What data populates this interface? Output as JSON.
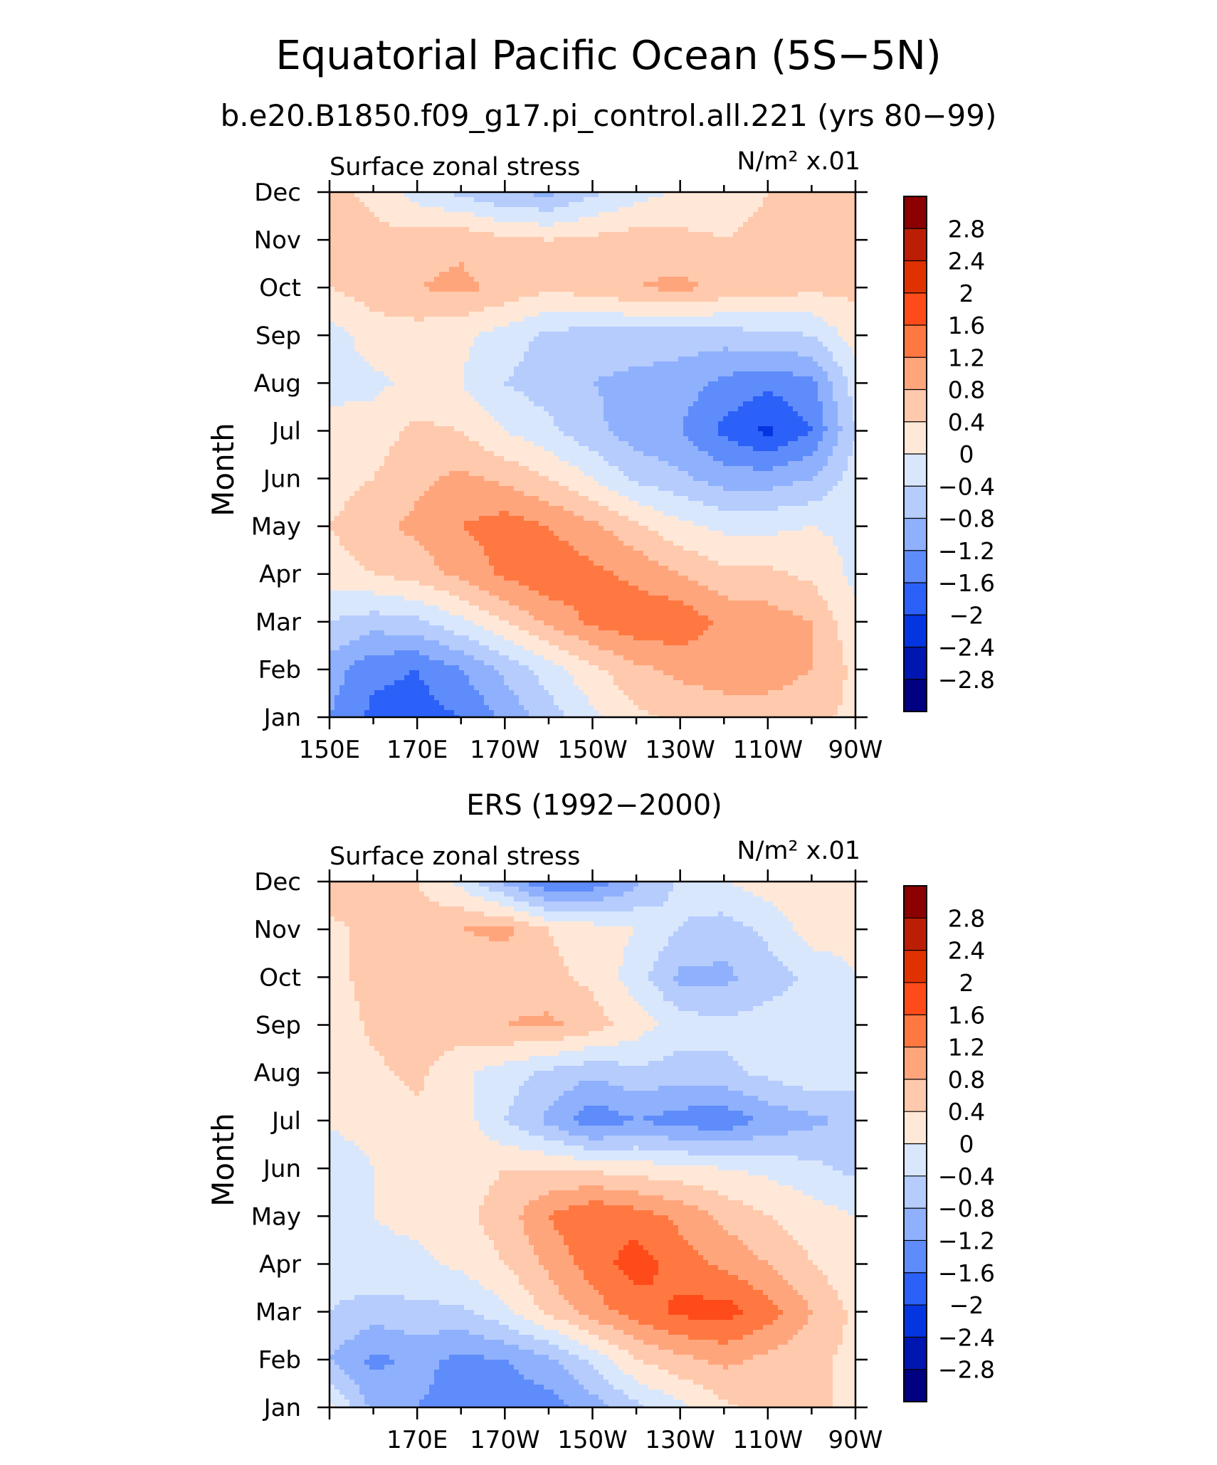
{
  "figure": {
    "title": "Equatorial Pacific Ocean (5S−5N)",
    "subtitle": "b.e20.B1850.f09_g17.pi_control.all.221 (yrs 80−99)"
  },
  "colorbar": {
    "labels": [
      "2.8",
      "2.4",
      "2",
      "1.6",
      "1.2",
      "0.8",
      "0.4",
      "0",
      "−0.4",
      "−0.8",
      "−1.2",
      "−1.6",
      "−2",
      "−2.4",
      "−2.8"
    ],
    "levels": [
      2.8,
      2.4,
      2.0,
      1.6,
      1.2,
      0.8,
      0.4,
      0,
      -0.4,
      -0.8,
      -1.2,
      -1.6,
      -2.0,
      -2.4,
      -2.8
    ],
    "colors_top_to_bottom": [
      "#8b0000",
      "#bb1e04",
      "#e03200",
      "#ff4b1a",
      "#ff7842",
      "#ffa57c",
      "#ffc9ad",
      "#ffe8d7",
      "#d9e7fd",
      "#b5ccfd",
      "#8fb0fc",
      "#5f8cfb",
      "#2b61f8",
      "#0535e0",
      "#0016b0",
      "#000080"
    ]
  },
  "panels": [
    {
      "id": "model",
      "var_label": "Surface zonal stress",
      "units_label": "N/m² x.01",
      "ylabel": "Month",
      "panel_title": ""
    },
    {
      "id": "ers",
      "var_label": "Surface zonal stress",
      "units_label": "N/m² x.01",
      "ylabel": "Month",
      "panel_title": "ERS (1992−2000)"
    }
  ],
  "chart_data": [
    {
      "type": "heatmap",
      "title": "Equatorial Pacific Ocean (5S−5N)",
      "subtitle": "b.e20.B1850.f09_g17.pi_control.all.221 (yrs 80−99)",
      "xlabel": "",
      "ylabel": "Month",
      "var": "Surface zonal stress",
      "units": "N/m² x.01",
      "x": [
        150,
        160,
        170,
        180,
        190,
        200,
        210,
        220,
        230,
        240,
        250,
        260,
        270
      ],
      "x_ticks": [
        "150E",
        "170E",
        "170W",
        "150W",
        "130W",
        "110W",
        "90W"
      ],
      "y": [
        "Jan",
        "Feb",
        "Mar",
        "Apr",
        "May",
        "Jun",
        "Jul",
        "Aug",
        "Sep",
        "Oct",
        "Nov",
        "Dec"
      ],
      "y_ticks": [
        "Jan",
        "Feb",
        "Mar",
        "Apr",
        "May",
        "Jun",
        "Jul",
        "Aug",
        "Sep",
        "Oct",
        "Nov",
        "Dec"
      ],
      "z": [
        [
          -1.2,
          -1.7,
          -1.8,
          -1.6,
          -1.1,
          -0.6,
          -0.1,
          0.3,
          0.5,
          0.6,
          0.6,
          0.5,
          0.3
        ],
        [
          -1.0,
          -1.5,
          -1.6,
          -1.2,
          -0.7,
          -0.2,
          0.3,
          0.7,
          0.9,
          1.0,
          1.0,
          0.8,
          0.3
        ],
        [
          -0.4,
          -0.6,
          -0.5,
          -0.1,
          0.4,
          0.9,
          1.3,
          1.5,
          1.5,
          1.1,
          1.0,
          0.8,
          0.1
        ],
        [
          0.2,
          0.4,
          0.6,
          0.9,
          1.3,
          1.5,
          1.3,
          1.1,
          0.8,
          0.5,
          0.5,
          0.3,
          -0.1
        ],
        [
          0.4,
          0.7,
          0.9,
          1.2,
          1.4,
          1.2,
          0.9,
          0.5,
          0.1,
          -0.1,
          -0.1,
          0.0,
          -0.1
        ],
        [
          0.2,
          0.4,
          0.7,
          0.9,
          0.7,
          0.4,
          0.0,
          -0.5,
          -0.7,
          -1.0,
          -1.0,
          -0.8,
          -0.2
        ],
        [
          0.1,
          0.2,
          0.5,
          0.4,
          0.0,
          -0.3,
          -0.7,
          -1.0,
          -1.2,
          -1.7,
          -2.1,
          -1.6,
          -0.4
        ],
        [
          -0.1,
          -0.1,
          0.1,
          0.0,
          -0.4,
          -0.6,
          -0.8,
          -0.9,
          -1.0,
          -1.3,
          -1.5,
          -1.3,
          -0.2
        ],
        [
          -0.2,
          0.2,
          0.2,
          0.1,
          -0.2,
          -0.5,
          -0.6,
          -0.6,
          -0.6,
          -0.6,
          -0.5,
          -0.4,
          0.2
        ],
        [
          0.4,
          0.6,
          0.8,
          0.9,
          0.7,
          0.5,
          0.6,
          0.8,
          0.9,
          0.7,
          0.6,
          0.5,
          0.5
        ],
        [
          0.8,
          0.5,
          0.6,
          0.7,
          0.5,
          0.4,
          0.5,
          0.6,
          0.5,
          0.4,
          0.5,
          0.5,
          0.4
        ],
        [
          0.5,
          0.3,
          -0.2,
          -0.5,
          -0.8,
          -0.9,
          -0.5,
          -0.2,
          0.1,
          0.2,
          0.4,
          0.6,
          0.5
        ]
      ],
      "levels": [
        -2.8,
        -2.4,
        -2.0,
        -1.6,
        -1.2,
        -0.8,
        -0.4,
        0,
        0.4,
        0.8,
        1.2,
        1.6,
        2.0,
        2.4,
        2.8
      ],
      "xlim": [
        150,
        270
      ]
    },
    {
      "type": "heatmap",
      "title": "ERS (1992−2000)",
      "xlabel": "",
      "ylabel": "Month",
      "var": "Surface zonal stress",
      "units": "N/m² x.01",
      "x": [
        150,
        160,
        170,
        180,
        190,
        200,
        210,
        220,
        230,
        240,
        250,
        260,
        270
      ],
      "x_ticks": [
        "170E",
        "170W",
        "150W",
        "130W",
        "110W",
        "90W"
      ],
      "y": [
        "Jan",
        "Feb",
        "Mar",
        "Apr",
        "May",
        "Jun",
        "Jul",
        "Aug",
        "Sep",
        "Oct",
        "Nov",
        "Dec"
      ],
      "y_ticks": [
        "Jan",
        "Feb",
        "Mar",
        "Apr",
        "May",
        "Jun",
        "Jul",
        "Aug",
        "Sep",
        "Oct",
        "Nov",
        "Dec"
      ],
      "z": [
        [
          0.1,
          -0.9,
          -1.2,
          -1.3,
          -1.5,
          -1.4,
          -1.0,
          -0.5,
          -0.1,
          0.3,
          0.6,
          0.5,
          0.3
        ],
        [
          -0.8,
          -1.3,
          -1.1,
          -1.3,
          -1.2,
          -0.9,
          -0.3,
          0.4,
          0.7,
          0.9,
          0.7,
          0.5,
          0.3
        ],
        [
          -0.4,
          -0.6,
          -0.5,
          -0.5,
          -0.1,
          0.5,
          1.0,
          1.4,
          1.7,
          1.8,
          1.4,
          0.8,
          0.3
        ],
        [
          -0.2,
          -0.1,
          -0.1,
          0.1,
          0.4,
          0.9,
          1.4,
          1.8,
          1.4,
          1.1,
          0.8,
          0.4,
          0.1
        ],
        [
          -0.1,
          0.0,
          0.1,
          0.3,
          0.6,
          1.2,
          1.6,
          1.4,
          1.1,
          0.7,
          0.4,
          0.2,
          0.0
        ],
        [
          -0.4,
          0.0,
          0.1,
          0.2,
          0.4,
          0.4,
          0.3,
          0.2,
          0.1,
          0.0,
          -0.1,
          -0.3,
          -0.5
        ],
        [
          0.1,
          0.2,
          0.3,
          0.2,
          -0.4,
          -0.9,
          -1.5,
          -1.2,
          -1.4,
          -1.5,
          -1.1,
          -0.9,
          -0.7
        ],
        [
          0.2,
          0.3,
          0.5,
          0.1,
          -0.2,
          -0.5,
          -0.7,
          -0.5,
          -0.6,
          -0.5,
          -0.3,
          -0.1,
          -0.2
        ],
        [
          0.1,
          0.5,
          0.7,
          0.6,
          0.8,
          0.9,
          0.6,
          0.2,
          -0.2,
          -0.3,
          -0.2,
          -0.2,
          0.0
        ],
        [
          0.2,
          0.6,
          0.5,
          0.4,
          0.6,
          0.5,
          0.3,
          -0.2,
          -0.9,
          -0.9,
          -0.6,
          -0.3,
          0.0
        ],
        [
          0.3,
          0.5,
          0.6,
          0.8,
          0.9,
          0.4,
          0.2,
          0.0,
          -0.4,
          -0.6,
          -0.3,
          0.2,
          0.1
        ],
        [
          0.7,
          0.8,
          0.4,
          -0.1,
          -0.9,
          -1.6,
          -1.5,
          -0.9,
          -0.3,
          0.0,
          0.2,
          0.3,
          0.3
        ]
      ],
      "levels": [
        -2.8,
        -2.4,
        -2.0,
        -1.6,
        -1.2,
        -0.8,
        -0.4,
        0,
        0.4,
        0.8,
        1.2,
        1.6,
        2.0,
        2.4,
        2.8
      ],
      "xlim": [
        150,
        270
      ]
    }
  ]
}
